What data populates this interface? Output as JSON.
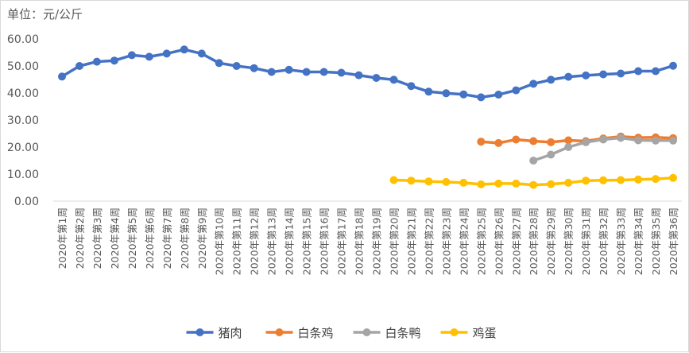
{
  "chart_data": {
    "type": "line",
    "unit_label": "单位：元/公斤",
    "ylim": [
      0,
      60
    ],
    "yticks": [
      "0.00",
      "10.00",
      "20.00",
      "30.00",
      "40.00",
      "50.00",
      "60.00"
    ],
    "grid": false,
    "legend_position": "bottom",
    "categories": [
      "2020年第1周",
      "2020年第2周",
      "2020年第3周",
      "2020年第4周",
      "2020年第5周",
      "2020年第6周",
      "2020年第7周",
      "2020年第8周",
      "2020年第9周",
      "2020年第10周",
      "2020年第11周",
      "2020年第12周",
      "2020年第13周",
      "2020年第14周",
      "2020年第15周",
      "2020年第16周",
      "2020年第17周",
      "2020年第18周",
      "2020年第19周",
      "2020年第20周",
      "2020年第21周",
      "2020年第22周",
      "2020年第23周",
      "2020年第24周",
      "2020年第25周",
      "2020年第26周",
      "2020年第27周",
      "2020年第28周",
      "2020年第29周",
      "2020年第30周",
      "2020年第31周",
      "2020年第32周",
      "2020年第33周",
      "2020年第34周",
      "2020年第35周",
      "2020年第36周"
    ],
    "series": [
      {
        "name": "猪肉",
        "color": "#4472C4",
        "values": [
          46.1,
          50.0,
          51.6,
          52.0,
          54.0,
          53.4,
          54.6,
          56.1,
          54.6,
          51.1,
          50.0,
          49.2,
          47.8,
          48.6,
          47.8,
          47.8,
          47.5,
          46.6,
          45.6,
          44.9,
          42.6,
          40.5,
          39.9,
          39.5,
          38.4,
          39.4,
          41.0,
          43.4,
          44.9,
          46.0,
          46.5,
          46.9,
          47.2,
          48.1,
          48.1,
          50.1
        ]
      },
      {
        "name": "白条鸡",
        "color": "#ED7D31",
        "values": [
          null,
          null,
          null,
          null,
          null,
          null,
          null,
          null,
          null,
          null,
          null,
          null,
          null,
          null,
          null,
          null,
          null,
          null,
          null,
          null,
          null,
          null,
          null,
          null,
          22.0,
          21.5,
          22.8,
          22.2,
          21.8,
          22.5,
          22.2,
          23.2,
          23.9,
          23.5,
          23.6,
          23.3
        ]
      },
      {
        "name": "白条鸭",
        "color": "#A5A5A5",
        "values": [
          null,
          null,
          null,
          null,
          null,
          null,
          null,
          null,
          null,
          null,
          null,
          null,
          null,
          null,
          null,
          null,
          null,
          null,
          null,
          null,
          null,
          null,
          null,
          null,
          null,
          null,
          null,
          15.0,
          17.2,
          20.0,
          21.8,
          22.8,
          23.4,
          22.5,
          22.4,
          22.4
        ]
      },
      {
        "name": "鸡蛋",
        "color": "#FFC000",
        "values": [
          null,
          null,
          null,
          null,
          null,
          null,
          null,
          null,
          null,
          null,
          null,
          null,
          null,
          null,
          null,
          null,
          null,
          null,
          null,
          7.8,
          7.6,
          7.3,
          7.1,
          6.8,
          6.2,
          6.5,
          6.5,
          6.0,
          6.3,
          6.8,
          7.6,
          7.7,
          7.8,
          8.0,
          8.2,
          8.6
        ]
      }
    ]
  }
}
